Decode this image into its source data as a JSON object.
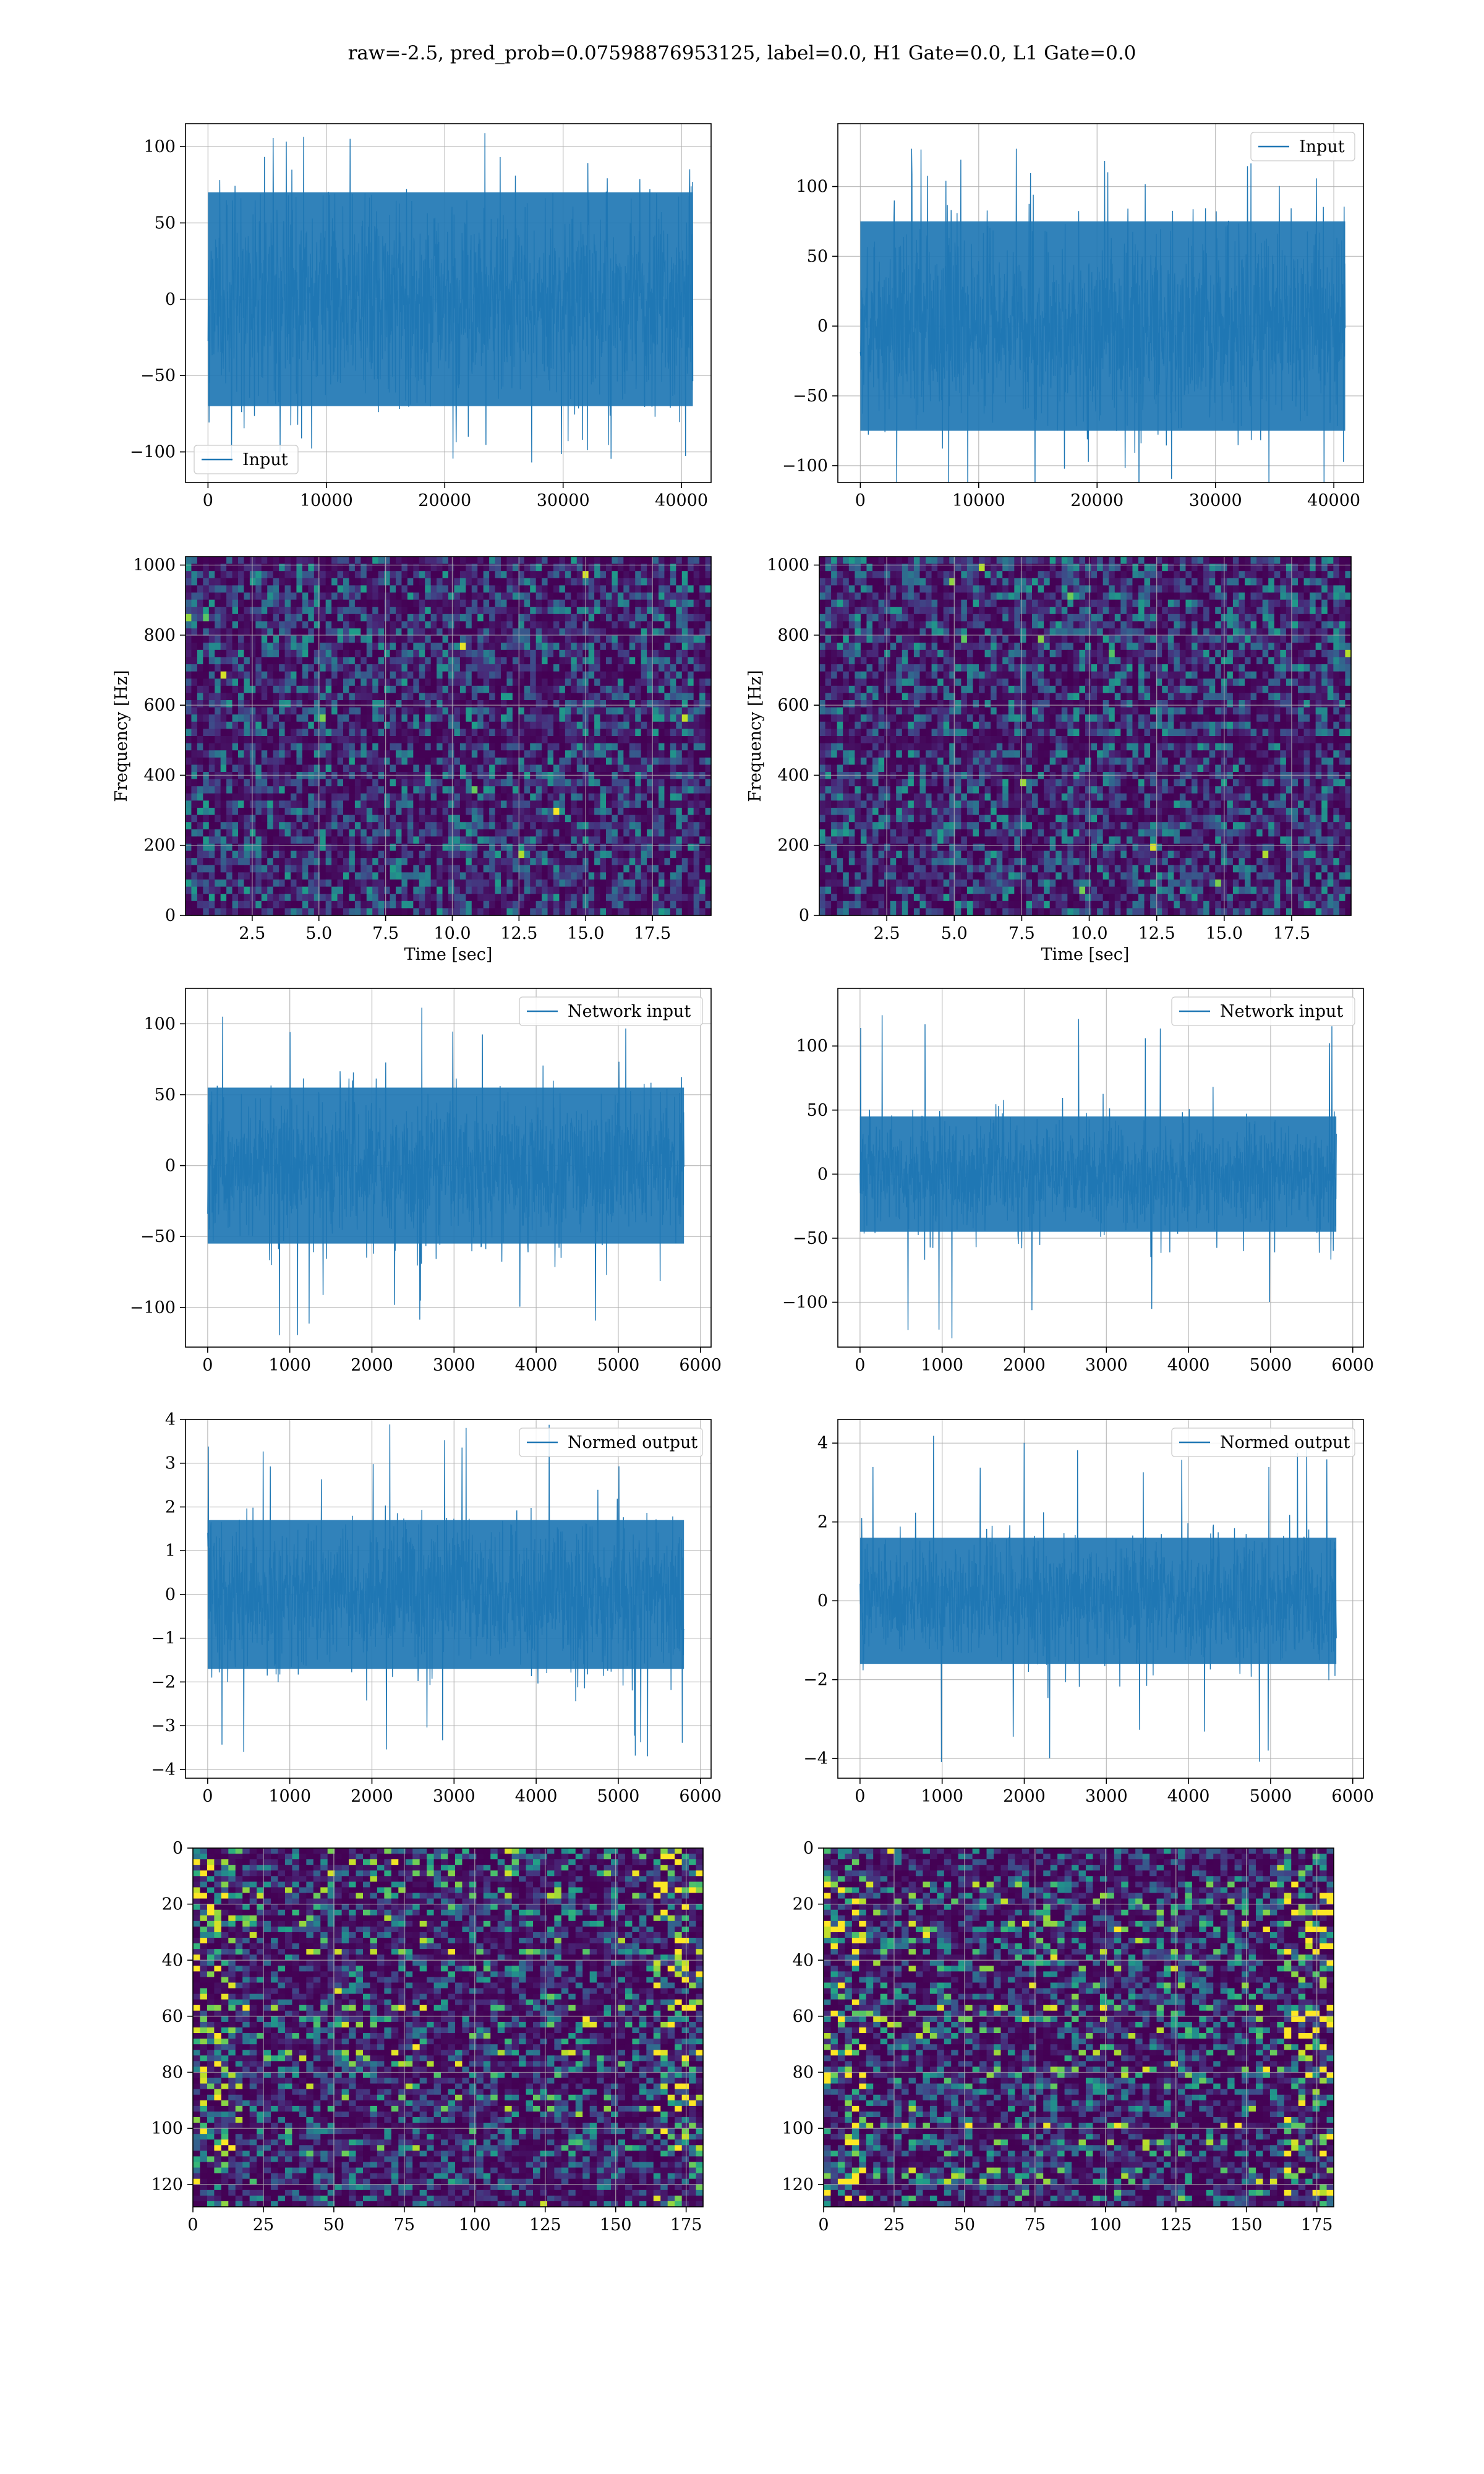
{
  "title": "raw=-2.5, pred_prob=0.07598876953125, label=0.0, H1 Gate=0.0, L1 Gate=0.0",
  "colors": {
    "line": "#1f77b4",
    "grid": "#b0b0b0",
    "viridis_low": "#440154",
    "viridis_mid": "#21918c",
    "viridis_high": "#fde725"
  },
  "chart_data": [
    {
      "id": "input-h1",
      "type": "line",
      "series": [
        {
          "name": "Input"
        }
      ],
      "x_range": [
        0,
        40960
      ],
      "xlim": [
        -1900,
        42500
      ],
      "ylim": [
        -120,
        115
      ],
      "xticks": [
        0,
        10000,
        20000,
        30000,
        40000
      ],
      "yticks": [
        -100,
        -50,
        0,
        50,
        100
      ],
      "legend": "lower-left",
      "grid": true,
      "noise_band": 70,
      "noise_peak": 110,
      "xlabel": "",
      "ylabel": ""
    },
    {
      "id": "input-l1",
      "type": "line",
      "series": [
        {
          "name": "Input"
        }
      ],
      "x_range": [
        0,
        40960
      ],
      "xlim": [
        -1900,
        42500
      ],
      "ylim": [
        -112,
        145
      ],
      "xticks": [
        0,
        10000,
        20000,
        30000,
        40000
      ],
      "yticks": [
        -100,
        -50,
        0,
        50,
        100
      ],
      "legend": "upper-right",
      "grid": true,
      "noise_band": 75,
      "noise_peak": 130,
      "xlabel": "",
      "ylabel": ""
    },
    {
      "id": "spectrogram-h1",
      "type": "heatmap",
      "colormap": "viridis",
      "xlim": [
        0,
        19.7
      ],
      "ylim": [
        0,
        1024
      ],
      "xticks": [
        2.5,
        5.0,
        7.5,
        10.0,
        12.5,
        15.0,
        17.5
      ],
      "yticks": [
        0,
        200,
        400,
        600,
        800,
        1000
      ],
      "xlabel": "Time [sec]",
      "ylabel": "Frequency [Hz]",
      "grid": true,
      "dark_band_hz": 500
    },
    {
      "id": "spectrogram-l1",
      "type": "heatmap",
      "colormap": "viridis",
      "xlim": [
        0,
        19.7
      ],
      "ylim": [
        0,
        1024
      ],
      "xticks": [
        2.5,
        5.0,
        7.5,
        10.0,
        12.5,
        15.0,
        17.5
      ],
      "yticks": [
        0,
        200,
        400,
        600,
        800,
        1000
      ],
      "xlabel": "Time [sec]",
      "ylabel": "Frequency [Hz]",
      "grid": true,
      "dark_band_hz": 500
    },
    {
      "id": "network-input-h1",
      "type": "line",
      "series": [
        {
          "name": "Network input"
        }
      ],
      "x_range": [
        0,
        5800
      ],
      "xlim": [
        -270,
        6130
      ],
      "ylim": [
        -128,
        125
      ],
      "xticks": [
        0,
        1000,
        2000,
        3000,
        4000,
        5000,
        6000
      ],
      "yticks": [
        -100,
        -50,
        0,
        50,
        100
      ],
      "legend": "upper-right",
      "grid": true,
      "noise_band": 55,
      "noise_peak": 120,
      "xlabel": "",
      "ylabel": ""
    },
    {
      "id": "network-input-l1",
      "type": "line",
      "series": [
        {
          "name": "Network input"
        }
      ],
      "x_range": [
        0,
        5800
      ],
      "xlim": [
        -270,
        6130
      ],
      "ylim": [
        -135,
        145
      ],
      "xticks": [
        0,
        1000,
        2000,
        3000,
        4000,
        5000,
        6000
      ],
      "yticks": [
        -100,
        -50,
        0,
        50,
        100
      ],
      "legend": "upper-right",
      "grid": true,
      "noise_band": 45,
      "noise_peak": 130,
      "xlabel": "",
      "ylabel": ""
    },
    {
      "id": "normed-output-h1",
      "type": "line",
      "series": [
        {
          "name": "Normed output"
        }
      ],
      "x_range": [
        0,
        5800
      ],
      "xlim": [
        -270,
        6130
      ],
      "ylim": [
        -4.2,
        4.0
      ],
      "xticks": [
        0,
        1000,
        2000,
        3000,
        4000,
        5000,
        6000
      ],
      "yticks": [
        -4,
        -3,
        -2,
        -1,
        0,
        1,
        2,
        3,
        4
      ],
      "legend": "upper-right",
      "grid": true,
      "noise_band": 1.7,
      "noise_peak": 3.9,
      "xlabel": "",
      "ylabel": ""
    },
    {
      "id": "normed-output-l1",
      "type": "line",
      "series": [
        {
          "name": "Normed output"
        }
      ],
      "x_range": [
        0,
        5800
      ],
      "xlim": [
        -270,
        6130
      ],
      "ylim": [
        -4.5,
        4.6
      ],
      "xticks": [
        0,
        1000,
        2000,
        3000,
        4000,
        5000,
        6000
      ],
      "yticks": [
        -4,
        -2,
        0,
        2,
        4
      ],
      "legend": "upper-right",
      "grid": true,
      "noise_band": 1.6,
      "noise_peak": 4.2,
      "xlabel": "",
      "ylabel": ""
    },
    {
      "id": "feature-map-h1",
      "type": "heatmap",
      "colormap": "viridis",
      "xlim": [
        0,
        181
      ],
      "ylim": [
        128,
        0
      ],
      "xticks": [
        0,
        25,
        50,
        75,
        100,
        125,
        150,
        175
      ],
      "yticks": [
        0,
        20,
        40,
        60,
        80,
        100,
        120
      ],
      "grid": true,
      "xlabel": "",
      "ylabel": ""
    },
    {
      "id": "feature-map-l1",
      "type": "heatmap",
      "colormap": "viridis",
      "xlim": [
        0,
        181
      ],
      "ylim": [
        128,
        0
      ],
      "xticks": [
        0,
        25,
        50,
        75,
        100,
        125,
        150,
        175
      ],
      "yticks": [
        0,
        20,
        40,
        60,
        80,
        100,
        120
      ],
      "grid": true,
      "xlabel": "",
      "ylabel": ""
    }
  ]
}
